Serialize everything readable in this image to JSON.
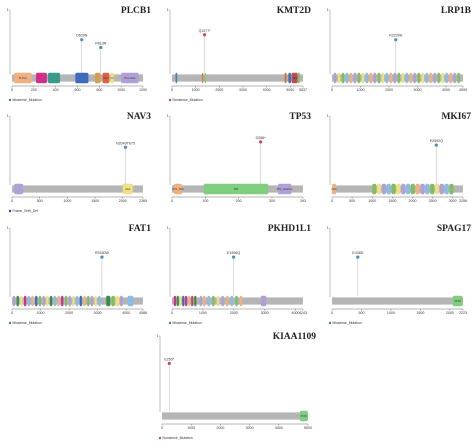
{
  "panels": [
    {
      "gene": "PLCB1",
      "length": 1200,
      "ticks": [
        0,
        200,
        400,
        600,
        800,
        1000,
        1200
      ],
      "max_label": "1200",
      "legend": "Missense_Mutation",
      "legend_color": "#3a8a4a",
      "y_axis_count": 1,
      "mutations": [
        {
          "label": "D639N",
          "pos": 639,
          "color": "#4a8fb0",
          "level": 0.68
        },
        {
          "label": "P813R",
          "pos": 813,
          "color": "#4a8fb0",
          "level": 0.52
        }
      ],
      "domains": [
        {
          "label": "PI-PLC",
          "start": 20,
          "end": 180,
          "color": "#f0b080"
        },
        {
          "label": "",
          "start": 220,
          "end": 320,
          "color": "#d0308a"
        },
        {
          "label": "",
          "start": 330,
          "end": 440,
          "color": "#3b9a8a"
        },
        {
          "label": "",
          "start": 580,
          "end": 700,
          "color": "#3c6bbf"
        },
        {
          "label": "",
          "start": 760,
          "end": 810,
          "color": "#d2a050"
        },
        {
          "label": "PLC",
          "start": 830,
          "end": 890,
          "color": "#e06040"
        },
        {
          "label": "C2",
          "start": 900,
          "end": 935,
          "color": "#f0e080"
        },
        {
          "label": "PLC-beta",
          "start": 1000,
          "end": 1160,
          "color": "#b0a0d8"
        }
      ]
    },
    {
      "gene": "KMT2D",
      "length": 5537,
      "ticks": [
        0,
        1000,
        2000,
        3000,
        4000,
        5000,
        5537
      ],
      "max_label": "5537",
      "legend": "Nonsense_Mutation",
      "legend_color": "#d04848",
      "y_axis_count": 1,
      "mutations": [
        {
          "label": "Q1377*",
          "pos": 1377,
          "color": "#d04848",
          "level": 0.78
        }
      ],
      "domains": [
        {
          "label": "",
          "start": 150,
          "end": 220,
          "color": "#4a7cc0"
        },
        {
          "label": "",
          "start": 1270,
          "end": 1320,
          "color": "#e07030"
        },
        {
          "label": "",
          "start": 1380,
          "end": 1430,
          "color": "#7fbf5f"
        },
        {
          "label": "",
          "start": 4760,
          "end": 4840,
          "color": "#e07030"
        },
        {
          "label": "",
          "start": 4920,
          "end": 5030,
          "color": "#3a6fb8"
        },
        {
          "label": "SET",
          "start": 5060,
          "end": 5310,
          "color": "#c14a5a"
        },
        {
          "label": "",
          "start": 5320,
          "end": 5400,
          "color": "#7fbf5f"
        }
      ]
    },
    {
      "gene": "LRP1B",
      "length": 4599,
      "ticks": [
        0,
        1000,
        2000,
        3000,
        4000,
        4599
      ],
      "max_label": "4599",
      "legend": "",
      "legend_color": "#4a8fb0",
      "y_axis_count": 1,
      "mutations": [
        {
          "label": "R2239H",
          "pos": 2239,
          "color": "#4a8fb0",
          "level": 0.68
        }
      ],
      "domains": [
        {
          "label": "",
          "start": 60,
          "end": 150,
          "color": "#b0a0d8"
        },
        {
          "label": "",
          "start": 200,
          "end": 290,
          "color": "#f0e080"
        },
        {
          "label": "",
          "start": 340,
          "end": 430,
          "color": "#7fbf5f"
        },
        {
          "label": "",
          "start": 480,
          "end": 570,
          "color": "#89bde6"
        },
        {
          "label": "",
          "start": 620,
          "end": 710,
          "color": "#f0b080"
        },
        {
          "label": "",
          "start": 760,
          "end": 850,
          "color": "#b0a0d8"
        },
        {
          "label": "",
          "start": 900,
          "end": 990,
          "color": "#7fbf5f"
        },
        {
          "label": "",
          "start": 1040,
          "end": 1130,
          "color": "#f0e080"
        },
        {
          "label": "",
          "start": 1180,
          "end": 1270,
          "color": "#89bde6"
        },
        {
          "label": "",
          "start": 1320,
          "end": 1410,
          "color": "#f0b080"
        },
        {
          "label": "",
          "start": 1460,
          "end": 1550,
          "color": "#b0a0d8"
        },
        {
          "label": "",
          "start": 1600,
          "end": 1690,
          "color": "#7fbf5f"
        },
        {
          "label": "",
          "start": 1740,
          "end": 1830,
          "color": "#f0e080"
        },
        {
          "label": "",
          "start": 1880,
          "end": 1970,
          "color": "#89bde6"
        },
        {
          "label": "",
          "start": 2020,
          "end": 2110,
          "color": "#f0b080"
        },
        {
          "label": "",
          "start": 2160,
          "end": 2250,
          "color": "#b0a0d8"
        },
        {
          "label": "",
          "start": 2300,
          "end": 2390,
          "color": "#7fbf5f"
        },
        {
          "label": "",
          "start": 2440,
          "end": 2530,
          "color": "#f0e080"
        },
        {
          "label": "",
          "start": 2580,
          "end": 2670,
          "color": "#89bde6"
        },
        {
          "label": "",
          "start": 2720,
          "end": 2810,
          "color": "#f0b080"
        },
        {
          "label": "",
          "start": 2860,
          "end": 2950,
          "color": "#b0a0d8"
        },
        {
          "label": "",
          "start": 3000,
          "end": 3090,
          "color": "#7fbf5f"
        },
        {
          "label": "",
          "start": 3140,
          "end": 3230,
          "color": "#f0e080"
        },
        {
          "label": "",
          "start": 3280,
          "end": 3370,
          "color": "#89bde6"
        },
        {
          "label": "",
          "start": 3420,
          "end": 3510,
          "color": "#f0b080"
        },
        {
          "label": "",
          "start": 3560,
          "end": 3650,
          "color": "#b0a0d8"
        },
        {
          "label": "",
          "start": 3700,
          "end": 3790,
          "color": "#7fbf5f"
        },
        {
          "label": "",
          "start": 3840,
          "end": 3930,
          "color": "#f0e080"
        },
        {
          "label": "",
          "start": 3980,
          "end": 4070,
          "color": "#89bde6"
        },
        {
          "label": "",
          "start": 4120,
          "end": 4210,
          "color": "#f0b080"
        },
        {
          "label": "",
          "start": 4260,
          "end": 4350,
          "color": "#b0a0d8"
        },
        {
          "label": "",
          "start": 4400,
          "end": 4490,
          "color": "#7fbf5f"
        }
      ]
    },
    {
      "gene": "NAV3",
      "length": 2365,
      "ticks": [
        0,
        500,
        1000,
        1500,
        2000,
        2365
      ],
      "max_label": "2365",
      "legend": "Frame_Shift_Del",
      "legend_color": "#3a3a9a",
      "y_axis_count": 1,
      "mutations": [
        {
          "label": "N2049Tfs*5",
          "pos": 2049,
          "color": "#4a8fb0",
          "level": 0.68
        }
      ],
      "domains": [
        {
          "label": "",
          "start": 40,
          "end": 200,
          "color": "#b0a0d8"
        },
        {
          "label": "AAA",
          "start": 2000,
          "end": 2180,
          "color": "#f0e080"
        }
      ]
    },
    {
      "gene": "TP53",
      "length": 393,
      "ticks": [
        0,
        100,
        200,
        300,
        393
      ],
      "max_label": "393",
      "legend": "",
      "legend_color": "#d04848",
      "y_axis_count": 1,
      "mutations": [
        {
          "label": "G266*",
          "pos": 266,
          "color": "#d04848",
          "level": 0.78
        }
      ],
      "domains": [
        {
          "label": "P53_TAD",
          "start": 6,
          "end": 30,
          "color": "#f0b080"
        },
        {
          "label": "P53",
          "start": 95,
          "end": 289,
          "color": "#7fcf7f"
        },
        {
          "label": "P53_tetramer",
          "start": 318,
          "end": 358,
          "color": "#b0a0d8"
        }
      ]
    },
    {
      "gene": "MKI67",
      "length": 3256,
      "ticks": [
        0,
        500,
        1000,
        1500,
        2000,
        2500,
        3000,
        3256
      ],
      "max_label": "3256",
      "legend": "",
      "legend_color": "#4a8fb0",
      "y_axis_count": 1,
      "mutations": [
        {
          "label": "E2592Q",
          "pos": 2592,
          "color": "#4a8fb0",
          "level": 0.72
        }
      ],
      "domains": [
        {
          "label": "FHA",
          "start": 1,
          "end": 100,
          "color": "#f0b080"
        },
        {
          "label": "",
          "start": 1000,
          "end": 1100,
          "color": "#7fbf5f"
        },
        {
          "label": "",
          "start": 1120,
          "end": 1220,
          "color": "#f0e080"
        },
        {
          "label": "",
          "start": 1240,
          "end": 1340,
          "color": "#b0a0d8"
        },
        {
          "label": "",
          "start": 1360,
          "end": 1460,
          "color": "#89bde6"
        },
        {
          "label": "",
          "start": 1480,
          "end": 1580,
          "color": "#7fbf5f"
        },
        {
          "label": "",
          "start": 1600,
          "end": 1700,
          "color": "#f0e080"
        },
        {
          "label": "",
          "start": 1720,
          "end": 1820,
          "color": "#b0a0d8"
        },
        {
          "label": "",
          "start": 1840,
          "end": 1940,
          "color": "#89bde6"
        },
        {
          "label": "",
          "start": 1960,
          "end": 2060,
          "color": "#7fbf5f"
        },
        {
          "label": "",
          "start": 2080,
          "end": 2180,
          "color": "#f0b080"
        },
        {
          "label": "",
          "start": 2200,
          "end": 2300,
          "color": "#b0a0d8"
        },
        {
          "label": "",
          "start": 2320,
          "end": 2420,
          "color": "#89bde6"
        },
        {
          "label": "",
          "start": 2440,
          "end": 2540,
          "color": "#7fbf5f"
        },
        {
          "label": "",
          "start": 2560,
          "end": 2660,
          "color": "#f0e080"
        },
        {
          "label": "",
          "start": 2680,
          "end": 2780,
          "color": "#b0a0d8"
        },
        {
          "label": "",
          "start": 2800,
          "end": 2900,
          "color": "#89bde6"
        },
        {
          "label": "",
          "start": 2920,
          "end": 3020,
          "color": "#7fbf5f"
        }
      ]
    },
    {
      "gene": "FAT1",
      "length": 4588,
      "ticks": [
        0,
        1000,
        2000,
        3000,
        4000,
        4588
      ],
      "max_label": "4588",
      "legend": "Missense_Mutation",
      "legend_color": "#3a8a4a",
      "y_axis_count": 1,
      "mutations": [
        {
          "label": "R3150W",
          "pos": 3150,
          "color": "#4a8fb0",
          "level": 0.72
        }
      ],
      "domains": [
        {
          "label": "",
          "start": 30,
          "end": 110,
          "color": "#b0a0d8"
        },
        {
          "label": "",
          "start": 160,
          "end": 240,
          "color": "#3a8a4a"
        },
        {
          "label": "",
          "start": 290,
          "end": 370,
          "color": "#f0e080"
        },
        {
          "label": "",
          "start": 420,
          "end": 500,
          "color": "#d0308a"
        },
        {
          "label": "",
          "start": 550,
          "end": 630,
          "color": "#89bde6"
        },
        {
          "label": "",
          "start": 680,
          "end": 760,
          "color": "#f0b080"
        },
        {
          "label": "",
          "start": 810,
          "end": 890,
          "color": "#3a6fb8"
        },
        {
          "label": "",
          "start": 940,
          "end": 1020,
          "color": "#7fbf5f"
        },
        {
          "label": "",
          "start": 1070,
          "end": 1150,
          "color": "#b0a0d8"
        },
        {
          "label": "",
          "start": 1200,
          "end": 1280,
          "color": "#f0e080"
        },
        {
          "label": "",
          "start": 1330,
          "end": 1410,
          "color": "#3a8a4a"
        },
        {
          "label": "",
          "start": 1460,
          "end": 1540,
          "color": "#89bde6"
        },
        {
          "label": "",
          "start": 1590,
          "end": 1670,
          "color": "#f0b080"
        },
        {
          "label": "",
          "start": 1720,
          "end": 1800,
          "color": "#d0308a"
        },
        {
          "label": "",
          "start": 1850,
          "end": 1930,
          "color": "#7fbf5f"
        },
        {
          "label": "",
          "start": 1980,
          "end": 2060,
          "color": "#b0a0d8"
        },
        {
          "label": "",
          "start": 2110,
          "end": 2190,
          "color": "#f0e080"
        },
        {
          "label": "",
          "start": 2240,
          "end": 2320,
          "color": "#89bde6"
        },
        {
          "label": "",
          "start": 2370,
          "end": 2450,
          "color": "#3a6fb8"
        },
        {
          "label": "",
          "start": 2500,
          "end": 2580,
          "color": "#f0b080"
        },
        {
          "label": "",
          "start": 2630,
          "end": 2710,
          "color": "#7fbf5f"
        },
        {
          "label": "",
          "start": 2760,
          "end": 2840,
          "color": "#b0a0d8"
        },
        {
          "label": "",
          "start": 2890,
          "end": 2970,
          "color": "#f0e080"
        },
        {
          "label": "",
          "start": 3020,
          "end": 3100,
          "color": "#89bde6"
        },
        {
          "label": "",
          "start": 3300,
          "end": 3440,
          "color": "#3a8a4a"
        },
        {
          "label": "",
          "start": 3480,
          "end": 3600,
          "color": "#7fbf5f"
        },
        {
          "label": "",
          "start": 3620,
          "end": 3760,
          "color": "#f0e080"
        },
        {
          "label": "",
          "start": 3780,
          "end": 3880,
          "color": "#b0a0d8"
        },
        {
          "label": "",
          "start": 4050,
          "end": 4250,
          "color": "#89bde6"
        }
      ]
    },
    {
      "gene": "PKHD1L1",
      "length": 4243,
      "ticks": [
        0,
        1000,
        2000,
        3000,
        4000,
        4243
      ],
      "max_label": "4243",
      "legend": "Missense_Mutation",
      "legend_color": "#3a8a4a",
      "y_axis_count": 1,
      "mutations": [
        {
          "label": "E1996Q",
          "pos": 1996,
          "color": "#4a8fb0",
          "level": 0.72
        }
      ],
      "domains": [
        {
          "label": "",
          "start": 60,
          "end": 130,
          "color": "#d0308a"
        },
        {
          "label": "",
          "start": 150,
          "end": 220,
          "color": "#3a8a4a"
        },
        {
          "label": "",
          "start": 240,
          "end": 310,
          "color": "#f0e080"
        },
        {
          "label": "",
          "start": 330,
          "end": 400,
          "color": "#3a6fb8"
        },
        {
          "label": "",
          "start": 420,
          "end": 490,
          "color": "#d0308a"
        },
        {
          "label": "",
          "start": 520,
          "end": 580,
          "color": "#f0b080"
        },
        {
          "label": "",
          "start": 620,
          "end": 690,
          "color": "#c14a5a"
        },
        {
          "label": "",
          "start": 720,
          "end": 790,
          "color": "#3a8a4a"
        },
        {
          "label": "",
          "start": 900,
          "end": 970,
          "color": "#b0a0d8"
        },
        {
          "label": "",
          "start": 1000,
          "end": 1080,
          "color": "#f0b080"
        },
        {
          "label": "",
          "start": 1150,
          "end": 1230,
          "color": "#89bde6"
        },
        {
          "label": "",
          "start": 1300,
          "end": 1380,
          "color": "#7fbf5f"
        },
        {
          "label": "",
          "start": 1450,
          "end": 1530,
          "color": "#f0e080"
        },
        {
          "label": "",
          "start": 1600,
          "end": 1680,
          "color": "#b0a0d8"
        },
        {
          "label": "",
          "start": 1750,
          "end": 1830,
          "color": "#f0b080"
        },
        {
          "label": "",
          "start": 1900,
          "end": 1980,
          "color": "#89bde6"
        },
        {
          "label": "",
          "start": 2050,
          "end": 2130,
          "color": "#7fbf5f"
        },
        {
          "label": "",
          "start": 2200,
          "end": 2280,
          "color": "#f0b080"
        },
        {
          "label": "",
          "start": 2880,
          "end": 3050,
          "color": "#b0a0d8"
        }
      ]
    },
    {
      "gene": "SPAG17",
      "length": 2223,
      "ticks": [
        0,
        500,
        1000,
        1500,
        2000,
        2223
      ],
      "max_label": "2223",
      "legend": "Missense_Mutation",
      "legend_color": "#3a8a4a",
      "y_axis_count": 1,
      "mutations": [
        {
          "label": "E438D",
          "pos": 438,
          "color": "#4a8fb0",
          "level": 0.72
        }
      ],
      "domains": [
        {
          "label": "PF06",
          "start": 2050,
          "end": 2215,
          "color": "#7fcf7f"
        }
      ]
    },
    {
      "gene": "KIAA1109",
      "length": 5000,
      "ticks": [
        0,
        1000,
        2000,
        3000,
        4000,
        5000
      ],
      "max_label": "5000",
      "legend": "Nonsense_Mutation",
      "legend_color": "#d04848",
      "y_axis_count": 1,
      "mutations": [
        {
          "label": "E250*",
          "pos": 250,
          "color": "#d04848",
          "level": 0.78
        }
      ],
      "domains": [
        {
          "label": "PF09",
          "start": 4720,
          "end": 4990,
          "color": "#7fcf7f"
        }
      ]
    }
  ]
}
